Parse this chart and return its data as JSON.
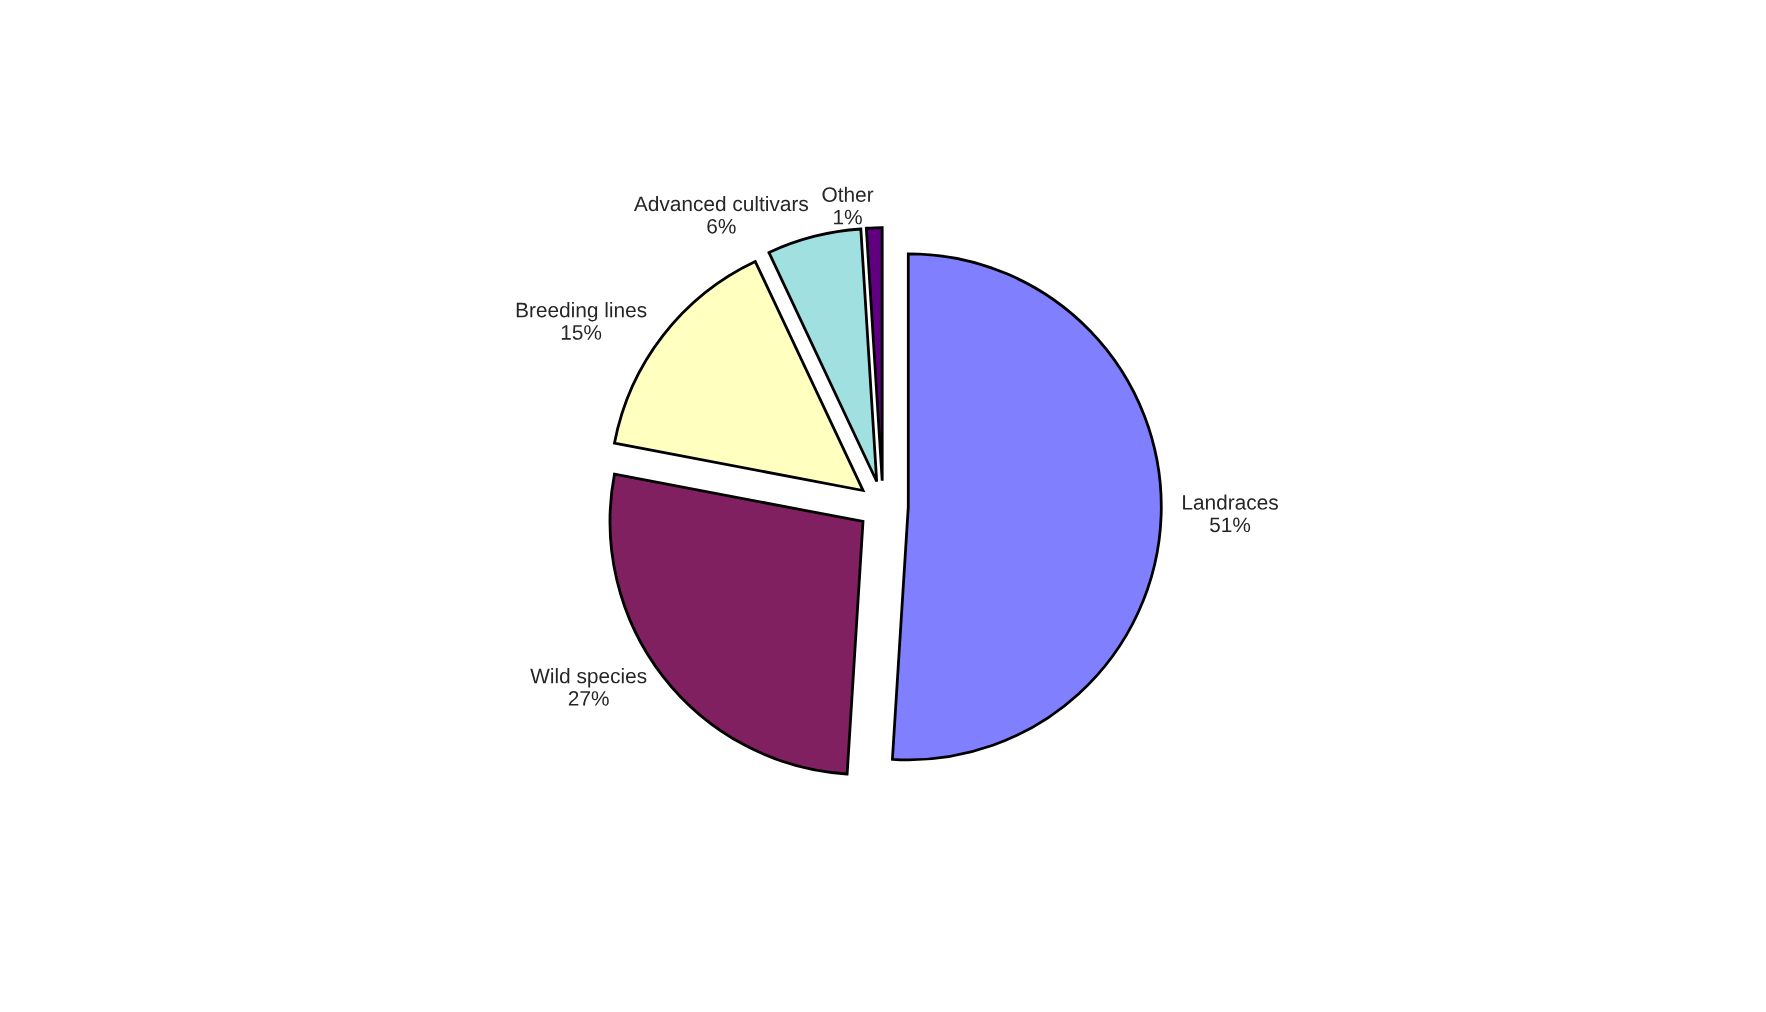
{
  "chart_data": {
    "type": "pie",
    "categories": [
      "Landraces",
      "Wild species",
      "Breeding lines",
      "Advanced cultivars",
      "Other"
    ],
    "values": [
      51,
      27,
      15,
      6,
      1
    ],
    "value_labels": [
      "51%",
      "27%",
      "15%",
      "6%",
      "1%"
    ],
    "colors": [
      "#8080ff",
      "#802060",
      "#ffffc0",
      "#a0e0e0",
      "#600080"
    ],
    "legend": false
  }
}
